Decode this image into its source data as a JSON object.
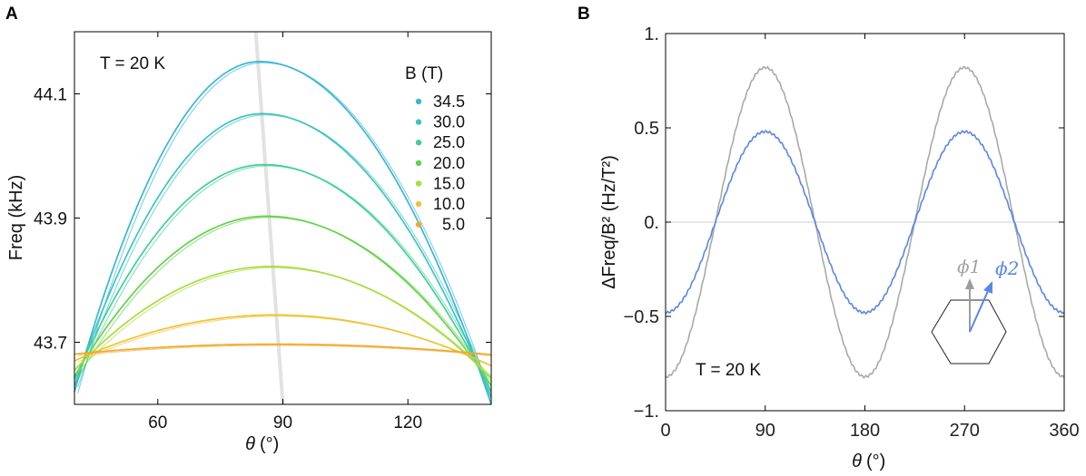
{
  "chart_data": [
    {
      "panel": "A",
      "type": "line",
      "xlabel_symbol": "θ",
      "xlabel_unit": "(°)",
      "ylabel": "Freq (kHz)",
      "xlim": [
        40,
        140
      ],
      "ylim": [
        43.6,
        44.2
      ],
      "xticks": [
        60,
        90,
        120
      ],
      "yticks": [
        43.7,
        43.9,
        44.1
      ],
      "ytick_labels": [
        "43.7",
        "43.9",
        "44.1"
      ],
      "annotation": "T = 20 K",
      "legend_title": "B (T)",
      "legend_position": "right",
      "guide_line": {
        "from": [
          83.5,
          44.2
        ],
        "to": [
          90,
          43.6
        ],
        "color": "#e2e2e2"
      },
      "series": [
        {
          "name": "34.5",
          "color": "#3ab5d6",
          "peak": [
            84.5,
            44.152
          ],
          "left_end": [
            40,
            43.62
          ],
          "right_end": [
            140,
            43.6
          ]
        },
        {
          "name": "30.0",
          "color": "#3dc3c3",
          "peak": [
            85.0,
            44.068
          ],
          "left_end": [
            40,
            43.63
          ],
          "right_end": [
            140,
            43.61
          ]
        },
        {
          "name": "25.0",
          "color": "#41cf98",
          "peak": [
            85.5,
            43.986
          ],
          "left_end": [
            40,
            43.64
          ],
          "right_end": [
            140,
            43.62
          ]
        },
        {
          "name": "20.0",
          "color": "#62d24a",
          "peak": [
            86.0,
            43.903
          ],
          "left_end": [
            40,
            43.645
          ],
          "right_end": [
            140,
            43.63
          ]
        },
        {
          "name": "15.0",
          "color": "#a6dd3e",
          "peak": [
            87.0,
            43.822
          ],
          "left_end": [
            40,
            43.655
          ],
          "right_end": [
            140,
            43.642
          ]
        },
        {
          "name": "10.0",
          "color": "#f0c232",
          "peak": [
            88.0,
            43.744
          ],
          "left_end": [
            40,
            43.67
          ],
          "right_end": [
            140,
            43.662
          ]
        },
        {
          "name": "5.0",
          "color": "#f0aa2c",
          "peak": [
            88.0,
            43.697
          ],
          "left_end": [
            40,
            43.681
          ],
          "right_end": [
            140,
            43.68
          ]
        }
      ]
    },
    {
      "panel": "B",
      "type": "line",
      "xlabel_symbol": "θ",
      "xlabel_unit": "(°)",
      "ylabel": "ΔFreq/B² (Hz/T²)",
      "xlim": [
        0,
        360
      ],
      "ylim": [
        -1,
        1
      ],
      "xticks": [
        0,
        90,
        180,
        270,
        360
      ],
      "yticks": [
        -1,
        -0.5,
        0,
        0.5,
        1
      ],
      "ytick_labels": [
        "−1.",
        "−0.5",
        "0.",
        "0.5",
        "1."
      ],
      "zero_line": true,
      "annotation": "T = 20 K",
      "inset": {
        "shape": "hexagon",
        "arrow1": "ϕ1",
        "arrow2": "ϕ2"
      },
      "series": [
        {
          "name": "ϕ1",
          "color": "#a9a9a9",
          "amplitude": 0.82,
          "peak_angle": 90,
          "period_deg": 180
        },
        {
          "name": "ϕ2",
          "color": "#5b86e4",
          "amplitude": 0.48,
          "peak_angle": 90,
          "period_deg": 180
        }
      ]
    }
  ]
}
